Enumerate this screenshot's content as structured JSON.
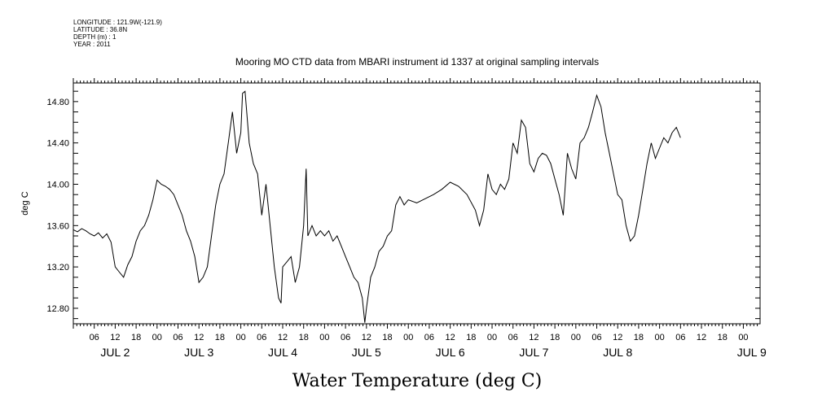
{
  "header": {
    "longitude": "LONGITUDE : 121.9W(-121.9)",
    "latitude": "LATITUDE : 36.8N",
    "depth": "DEPTH (m) : 1",
    "year": "YEAR : 2011"
  },
  "chart_data": {
    "type": "line",
    "title": "Mooring MO CTD data from MBARI instrument id 1337 at original sampling intervals",
    "xlabel": "Water Temperature (deg C)",
    "ylabel": "deg C",
    "xlim": [
      1,
      9.2
    ],
    "ylim": [
      12.65,
      14.98
    ],
    "grid": false,
    "y_ticks": [
      "12.80",
      "13.20",
      "13.60",
      "14.00",
      "14.40",
      "14.80"
    ],
    "x_hour_ticks": [
      "06",
      "12",
      "18",
      "00",
      "06",
      "12",
      "18",
      "00",
      "06",
      "12",
      "18",
      "00",
      "06",
      "12",
      "18",
      "00",
      "06",
      "12",
      "18",
      "00",
      "06",
      "12",
      "18",
      "00",
      "06",
      "12",
      "18",
      "00",
      "06",
      "12",
      "18",
      "00"
    ],
    "x_day_labels": [
      "JUL 2",
      "JUL 3",
      "JUL 4",
      "JUL 5",
      "JUL 6",
      "JUL 7",
      "JUL 8",
      "JUL 9"
    ],
    "series": [
      {
        "color": "#000000",
        "points": [
          [
            1.0,
            13.56
          ],
          [
            1.05,
            13.54
          ],
          [
            1.1,
            13.57
          ],
          [
            1.15,
            13.55
          ],
          [
            1.2,
            13.52
          ],
          [
            1.25,
            13.5
          ],
          [
            1.3,
            13.53
          ],
          [
            1.35,
            13.48
          ],
          [
            1.4,
            13.52
          ],
          [
            1.45,
            13.44
          ],
          [
            1.5,
            13.2
          ],
          [
            1.55,
            13.15
          ],
          [
            1.6,
            13.1
          ],
          [
            1.65,
            13.22
          ],
          [
            1.7,
            13.3
          ],
          [
            1.75,
            13.45
          ],
          [
            1.8,
            13.55
          ],
          [
            1.85,
            13.6
          ],
          [
            1.9,
            13.7
          ],
          [
            1.95,
            13.85
          ],
          [
            2.0,
            14.04
          ],
          [
            2.05,
            14.0
          ],
          [
            2.1,
            13.98
          ],
          [
            2.15,
            13.95
          ],
          [
            2.2,
            13.9
          ],
          [
            2.25,
            13.8
          ],
          [
            2.3,
            13.7
          ],
          [
            2.35,
            13.55
          ],
          [
            2.4,
            13.45
          ],
          [
            2.45,
            13.3
          ],
          [
            2.5,
            13.05
          ],
          [
            2.55,
            13.1
          ],
          [
            2.6,
            13.2
          ],
          [
            2.65,
            13.5
          ],
          [
            2.7,
            13.8
          ],
          [
            2.75,
            14.0
          ],
          [
            2.8,
            14.1
          ],
          [
            2.85,
            14.4
          ],
          [
            2.9,
            14.7
          ],
          [
            2.95,
            14.3
          ],
          [
            3.0,
            14.5
          ],
          [
            3.02,
            14.88
          ],
          [
            3.05,
            14.9
          ],
          [
            3.1,
            14.4
          ],
          [
            3.15,
            14.2
          ],
          [
            3.2,
            14.1
          ],
          [
            3.25,
            13.7
          ],
          [
            3.3,
            14.0
          ],
          [
            3.35,
            13.6
          ],
          [
            3.4,
            13.2
          ],
          [
            3.45,
            12.9
          ],
          [
            3.48,
            12.85
          ],
          [
            3.5,
            13.2
          ],
          [
            3.55,
            13.25
          ],
          [
            3.6,
            13.3
          ],
          [
            3.65,
            13.05
          ],
          [
            3.7,
            13.2
          ],
          [
            3.75,
            13.6
          ],
          [
            3.78,
            14.15
          ],
          [
            3.8,
            13.5
          ],
          [
            3.85,
            13.6
          ],
          [
            3.9,
            13.5
          ],
          [
            3.95,
            13.55
          ],
          [
            4.0,
            13.5
          ],
          [
            4.05,
            13.55
          ],
          [
            4.1,
            13.45
          ],
          [
            4.15,
            13.5
          ],
          [
            4.2,
            13.4
          ],
          [
            4.25,
            13.3
          ],
          [
            4.3,
            13.2
          ],
          [
            4.35,
            13.1
          ],
          [
            4.4,
            13.05
          ],
          [
            4.45,
            12.9
          ],
          [
            4.48,
            12.66
          ],
          [
            4.5,
            12.8
          ],
          [
            4.55,
            13.1
          ],
          [
            4.6,
            13.2
          ],
          [
            4.65,
            13.35
          ],
          [
            4.7,
            13.4
          ],
          [
            4.75,
            13.5
          ],
          [
            4.8,
            13.55
          ],
          [
            4.85,
            13.8
          ],
          [
            4.9,
            13.88
          ],
          [
            4.95,
            13.8
          ],
          [
            5.0,
            13.85
          ],
          [
            5.1,
            13.82
          ],
          [
            5.2,
            13.86
          ],
          [
            5.3,
            13.9
          ],
          [
            5.4,
            13.95
          ],
          [
            5.5,
            14.02
          ],
          [
            5.6,
            13.98
          ],
          [
            5.7,
            13.9
          ],
          [
            5.8,
            13.75
          ],
          [
            5.85,
            13.6
          ],
          [
            5.9,
            13.75
          ],
          [
            5.95,
            14.1
          ],
          [
            6.0,
            13.95
          ],
          [
            6.05,
            13.9
          ],
          [
            6.1,
            14.0
          ],
          [
            6.15,
            13.95
          ],
          [
            6.2,
            14.05
          ],
          [
            6.25,
            14.4
          ],
          [
            6.3,
            14.3
          ],
          [
            6.35,
            14.62
          ],
          [
            6.4,
            14.55
          ],
          [
            6.45,
            14.2
          ],
          [
            6.5,
            14.12
          ],
          [
            6.55,
            14.25
          ],
          [
            6.6,
            14.3
          ],
          [
            6.65,
            14.28
          ],
          [
            6.7,
            14.2
          ],
          [
            6.75,
            14.05
          ],
          [
            6.8,
            13.9
          ],
          [
            6.85,
            13.7
          ],
          [
            6.9,
            14.3
          ],
          [
            6.95,
            14.15
          ],
          [
            7.0,
            14.05
          ],
          [
            7.05,
            14.4
          ],
          [
            7.1,
            14.45
          ],
          [
            7.15,
            14.55
          ],
          [
            7.2,
            14.7
          ],
          [
            7.25,
            14.86
          ],
          [
            7.3,
            14.75
          ],
          [
            7.35,
            14.5
          ],
          [
            7.4,
            14.3
          ],
          [
            7.45,
            14.1
          ],
          [
            7.5,
            13.9
          ],
          [
            7.55,
            13.85
          ],
          [
            7.6,
            13.6
          ],
          [
            7.65,
            13.45
          ],
          [
            7.7,
            13.5
          ],
          [
            7.75,
            13.7
          ],
          [
            7.8,
            13.95
          ],
          [
            7.85,
            14.2
          ],
          [
            7.9,
            14.4
          ],
          [
            7.95,
            14.25
          ],
          [
            8.0,
            14.35
          ],
          [
            8.05,
            14.45
          ],
          [
            8.1,
            14.4
          ],
          [
            8.15,
            14.5
          ],
          [
            8.2,
            14.55
          ],
          [
            8.25,
            14.45
          ]
        ]
      }
    ]
  }
}
